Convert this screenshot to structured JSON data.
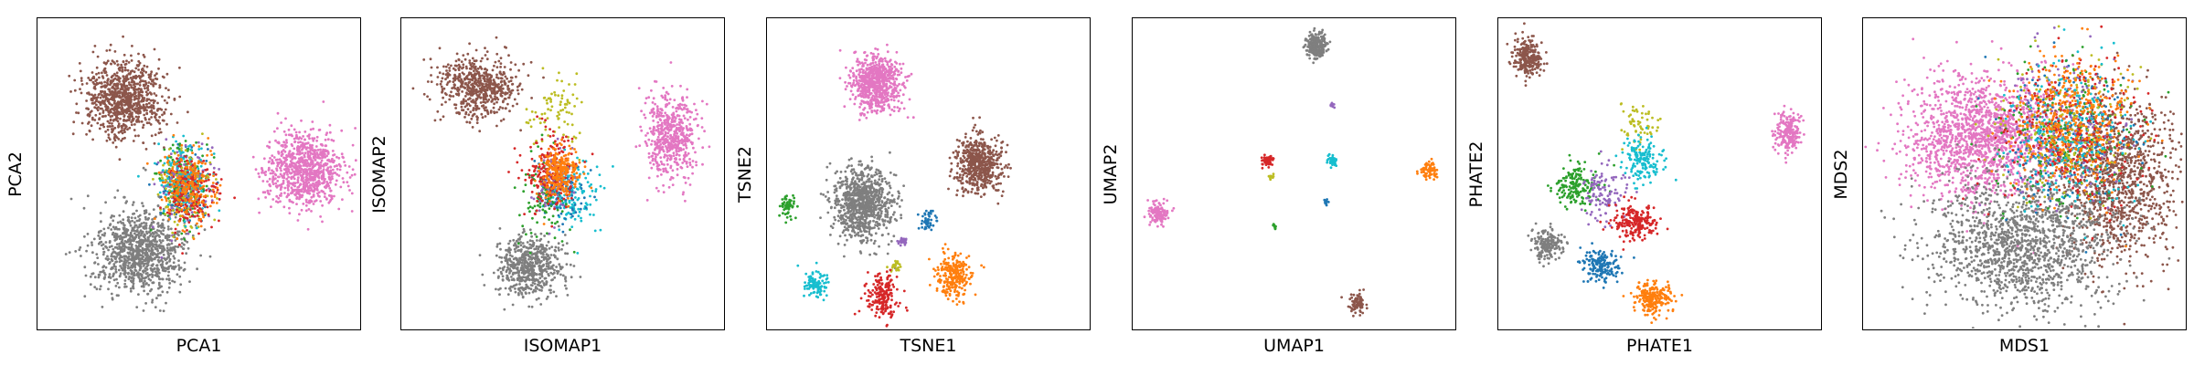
{
  "palette": {
    "blue": "#1f77b4",
    "orange": "#ff7f0e",
    "green": "#2ca02c",
    "red": "#d62728",
    "purple": "#9467bd",
    "brown": "#8c564b",
    "pink": "#e377c2",
    "gray": "#7f7f7f",
    "olive": "#bcbd22",
    "cyan": "#17becf"
  },
  "chart_data": [
    {
      "type": "scatter",
      "title": "",
      "xlabel": "PCA1",
      "ylabel": "PCA2",
      "xlim": [
        0,
        100
      ],
      "ylim": [
        0,
        100
      ],
      "ticks": "none",
      "clusters": [
        {
          "color": "brown",
          "center": [
            27,
            74
          ],
          "spread": [
            6,
            6
          ],
          "count": 900
        },
        {
          "color": "gray",
          "center": [
            32,
            25
          ],
          "spread": [
            7,
            7
          ],
          "count": 1000
        },
        {
          "color": "pink",
          "center": [
            83,
            51
          ],
          "spread": [
            6,
            6
          ],
          "count": 900
        },
        {
          "color": "blue",
          "center": [
            46,
            45
          ],
          "spread": [
            4,
            6
          ],
          "count": 140
        },
        {
          "color": "green",
          "center": [
            45,
            46
          ],
          "spread": [
            4,
            6
          ],
          "count": 140
        },
        {
          "color": "purple",
          "center": [
            46,
            47
          ],
          "spread": [
            4,
            6
          ],
          "count": 140
        },
        {
          "color": "olive",
          "center": [
            46,
            45
          ],
          "spread": [
            4,
            6
          ],
          "count": 140
        },
        {
          "color": "cyan",
          "center": [
            45,
            48
          ],
          "spread": [
            4,
            6
          ],
          "count": 140
        },
        {
          "color": "red",
          "center": [
            48,
            44
          ],
          "spread": [
            4,
            6
          ],
          "count": 180
        },
        {
          "color": "orange",
          "center": [
            47,
            46
          ],
          "spread": [
            4,
            6
          ],
          "count": 200
        }
      ]
    },
    {
      "type": "scatter",
      "title": "",
      "xlabel": "ISOMAP1",
      "ylabel": "ISOMAP2",
      "xlim": [
        0,
        100
      ],
      "ylim": [
        0,
        100
      ],
      "ticks": "none",
      "clusters": [
        {
          "color": "brown",
          "center": [
            24,
            78
          ],
          "spread": [
            6,
            5
          ],
          "count": 600
        },
        {
          "color": "pink",
          "center": [
            84,
            62
          ],
          "spread": [
            4,
            7
          ],
          "count": 550
        },
        {
          "color": "gray",
          "center": [
            40,
            20
          ],
          "spread": [
            5,
            5
          ],
          "count": 600
        },
        {
          "color": "olive",
          "center": [
            48,
            70
          ],
          "spread": [
            4,
            6
          ],
          "count": 80
        },
        {
          "color": "cyan",
          "center": [
            53,
            43
          ],
          "spread": [
            4,
            6
          ],
          "count": 150
        },
        {
          "color": "blue",
          "center": [
            49,
            44
          ],
          "spread": [
            4,
            5
          ],
          "count": 100
        },
        {
          "color": "green",
          "center": [
            44,
            42
          ],
          "spread": [
            4,
            7
          ],
          "count": 100
        },
        {
          "color": "purple",
          "center": [
            48,
            47
          ],
          "spread": [
            3,
            5
          ],
          "count": 80
        },
        {
          "color": "red",
          "center": [
            46,
            50
          ],
          "spread": [
            4,
            6
          ],
          "count": 200
        },
        {
          "color": "orange",
          "center": [
            49,
            50
          ],
          "spread": [
            3,
            4
          ],
          "count": 250
        }
      ]
    },
    {
      "type": "scatter",
      "title": "",
      "xlabel": "TSNE1",
      "ylabel": "TSNE2",
      "xlim": [
        0,
        100
      ],
      "ylim": [
        0,
        100
      ],
      "ticks": "none",
      "clusters": [
        {
          "color": "pink",
          "center": [
            34,
            79
          ],
          "spread": [
            3.8,
            4.4
          ],
          "count": 700
        },
        {
          "color": "brown",
          "center": [
            66,
            53
          ],
          "spread": [
            3.5,
            4.3
          ],
          "count": 600
        },
        {
          "color": "gray",
          "center": [
            30,
            40
          ],
          "spread": [
            4.5,
            5.5
          ],
          "count": 900
        },
        {
          "color": "green",
          "center": [
            6.5,
            39
          ],
          "spread": [
            1.2,
            1.6
          ],
          "count": 60
        },
        {
          "color": "blue",
          "center": [
            50,
            35
          ],
          "spread": [
            1.1,
            1.5
          ],
          "count": 50
        },
        {
          "color": "purple",
          "center": [
            42,
            28
          ],
          "spread": [
            0.7,
            0.9
          ],
          "count": 25
        },
        {
          "color": "olive",
          "center": [
            40,
            20
          ],
          "spread": [
            0.7,
            0.9
          ],
          "count": 25
        },
        {
          "color": "cyan",
          "center": [
            15,
            14
          ],
          "spread": [
            1.8,
            2.2
          ],
          "count": 100
        },
        {
          "color": "red",
          "center": [
            36,
            10
          ],
          "spread": [
            2.5,
            3.5
          ],
          "count": 200
        },
        {
          "color": "orange",
          "center": [
            58,
            17
          ],
          "spread": [
            3.0,
            3.7
          ],
          "count": 250
        }
      ]
    },
    {
      "type": "scatter",
      "title": "",
      "xlabel": "UMAP1",
      "ylabel": "UMAP2",
      "xlim": [
        0,
        100
      ],
      "ylim": [
        0,
        100
      ],
      "ticks": "none",
      "clusters": [
        {
          "color": "gray",
          "center": [
            57,
            91
          ],
          "spread": [
            1.6,
            2.1
          ],
          "count": 250
        },
        {
          "color": "purple",
          "center": [
            62,
            72
          ],
          "spread": [
            0.3,
            0.4
          ],
          "count": 8
        },
        {
          "color": "red",
          "center": [
            42,
            54
          ],
          "spread": [
            0.9,
            1.2
          ],
          "count": 60
        },
        {
          "color": "olive",
          "center": [
            43,
            49
          ],
          "spread": [
            0.4,
            0.6
          ],
          "count": 10
        },
        {
          "color": "cyan",
          "center": [
            62,
            54
          ],
          "spread": [
            0.8,
            0.9
          ],
          "count": 40
        },
        {
          "color": "orange",
          "center": [
            92,
            51
          ],
          "spread": [
            1.2,
            1.5
          ],
          "count": 70
        },
        {
          "color": "blue",
          "center": [
            60,
            41
          ],
          "spread": [
            0.4,
            0.5
          ],
          "count": 10
        },
        {
          "color": "pink",
          "center": [
            8,
            37
          ],
          "spread": [
            1.5,
            1.9
          ],
          "count": 120
        },
        {
          "color": "green",
          "center": [
            44,
            33
          ],
          "spread": [
            0.4,
            0.5
          ],
          "count": 10
        },
        {
          "color": "brown",
          "center": [
            70,
            8
          ],
          "spread": [
            1.2,
            1.7
          ],
          "count": 80
        }
      ]
    },
    {
      "type": "scatter",
      "title": "",
      "xlabel": "PHATE1",
      "ylabel": "PHATE2",
      "xlim": [
        0,
        100
      ],
      "ylim": [
        0,
        100
      ],
      "ticks": "none",
      "clusters": [
        {
          "color": "brown",
          "center": [
            9,
            87
          ],
          "spread": [
            2.0,
            3.0
          ],
          "count": 250
        },
        {
          "color": "pink",
          "center": [
            90,
            63
          ],
          "spread": [
            2.0,
            3.2
          ],
          "count": 220
        },
        {
          "color": "olive",
          "center": [
            44,
            66
          ],
          "spread": [
            3.0,
            4.0
          ],
          "count": 60
        },
        {
          "color": "cyan",
          "center": [
            45,
            54
          ],
          "spread": [
            3.0,
            3.5
          ],
          "count": 160
        },
        {
          "color": "green",
          "center": [
            24,
            46
          ],
          "spread": [
            3.5,
            3.5
          ],
          "count": 170
        },
        {
          "color": "purple",
          "center": [
            33,
            44
          ],
          "spread": [
            4.0,
            4.5
          ],
          "count": 110
        },
        {
          "color": "red",
          "center": [
            42,
            34
          ],
          "spread": [
            3.5,
            3.0
          ],
          "count": 220
        },
        {
          "color": "gray",
          "center": [
            15,
            27
          ],
          "spread": [
            2.5,
            2.5
          ],
          "count": 180
        },
        {
          "color": "blue",
          "center": [
            32,
            20
          ],
          "spread": [
            3.0,
            3.0
          ],
          "count": 180
        },
        {
          "color": "orange",
          "center": [
            48,
            10
          ],
          "spread": [
            3.0,
            2.5
          ],
          "count": 230
        }
      ]
    },
    {
      "type": "scatter",
      "title": "",
      "xlabel": "MDS1",
      "ylabel": "MDS2",
      "xlim": [
        0,
        100
      ],
      "ylim": [
        0,
        100
      ],
      "ticks": "none",
      "clusters": [
        {
          "color": "pink",
          "center": [
            36,
            62
          ],
          "spread": [
            11,
            10
          ],
          "count": 1500
        },
        {
          "color": "brown",
          "center": [
            80,
            48
          ],
          "spread": [
            9,
            13
          ],
          "count": 1100
        },
        {
          "color": "gray",
          "center": [
            50,
            28
          ],
          "spread": [
            14,
            11
          ],
          "count": 1500
        },
        {
          "color": "blue",
          "center": [
            62,
            62
          ],
          "spread": [
            10,
            12
          ],
          "count": 200
        },
        {
          "color": "green",
          "center": [
            63,
            63
          ],
          "spread": [
            10,
            12
          ],
          "count": 200
        },
        {
          "color": "purple",
          "center": [
            62,
            64
          ],
          "spread": [
            10,
            12
          ],
          "count": 200
        },
        {
          "color": "olive",
          "center": [
            63,
            64
          ],
          "spread": [
            10,
            12
          ],
          "count": 200
        },
        {
          "color": "cyan",
          "center": [
            64,
            62
          ],
          "spread": [
            10,
            12
          ],
          "count": 250
        },
        {
          "color": "red",
          "center": [
            65,
            64
          ],
          "spread": [
            10,
            12
          ],
          "count": 300
        },
        {
          "color": "orange",
          "center": [
            66,
            66
          ],
          "spread": [
            9,
            11
          ],
          "count": 400
        }
      ]
    }
  ]
}
